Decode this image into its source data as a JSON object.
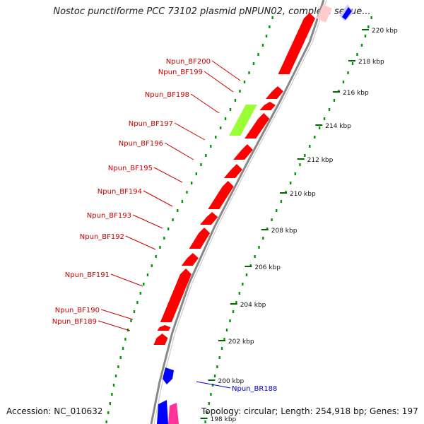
{
  "title": "Nostoc punctiforme PCC 73102 plasmid pNPUN02, complete seque...",
  "footer": {
    "accession": "Accession: NC_010632",
    "topology": "Topology: circular; Length: 254,918 bp; Genes: 197"
  },
  "scale_unit": "kbp",
  "scale_ticks": [
    {
      "kbp": 220,
      "label": "220 kbp"
    },
    {
      "kbp": 218,
      "label": "218 kbp"
    },
    {
      "kbp": 216,
      "label": "216 kbp"
    },
    {
      "kbp": 214,
      "label": "214 kbp"
    },
    {
      "kbp": 212,
      "label": "212 kbp"
    },
    {
      "kbp": 210,
      "label": "210 kbp"
    },
    {
      "kbp": 208,
      "label": "208 kbp"
    },
    {
      "kbp": 206,
      "label": "206 kbp"
    },
    {
      "kbp": 204,
      "label": "204 kbp"
    },
    {
      "kbp": 202,
      "label": "202 kbp"
    },
    {
      "kbp": 200,
      "label": "200 kbp"
    },
    {
      "kbp": 198,
      "label": "198 kbp"
    }
  ],
  "gene_labels": [
    {
      "name": "Npun_BF200",
      "strand": "forward",
      "color": "#cc0000"
    },
    {
      "name": "Npun_BF199",
      "strand": "forward",
      "color": "#cc0000"
    },
    {
      "name": "Npun_BF198",
      "strand": "forward",
      "color": "#cc0000"
    },
    {
      "name": "Npun_BF197",
      "strand": "forward",
      "color": "#cc0000"
    },
    {
      "name": "Npun_BF196",
      "strand": "forward",
      "color": "#cc0000"
    },
    {
      "name": "Npun_BF195",
      "strand": "forward",
      "color": "#cc0000"
    },
    {
      "name": "Npun_BF194",
      "strand": "forward",
      "color": "#cc0000"
    },
    {
      "name": "Npun_BF193",
      "strand": "forward",
      "color": "#cc0000"
    },
    {
      "name": "Npun_BF192",
      "strand": "forward",
      "color": "#cc0000"
    },
    {
      "name": "Npun_BF191",
      "strand": "forward",
      "color": "#cc0000"
    },
    {
      "name": "Npun_BF190",
      "strand": "forward",
      "color": "#cc0000"
    },
    {
      "name": "Npun_BF189",
      "strand": "forward",
      "color": "#cc0000"
    },
    {
      "name": "Npun_BR188",
      "strand": "reverse",
      "color": "#0000cc"
    }
  ],
  "colors": {
    "forward_cds": "#ff0000",
    "reverse_cds": "#0000ff",
    "highlight_feature": "#99ff33",
    "other_feature": "#ff3399",
    "backbone": "#888888",
    "tick_major": "#006600",
    "tick_minor": "#009900"
  }
}
